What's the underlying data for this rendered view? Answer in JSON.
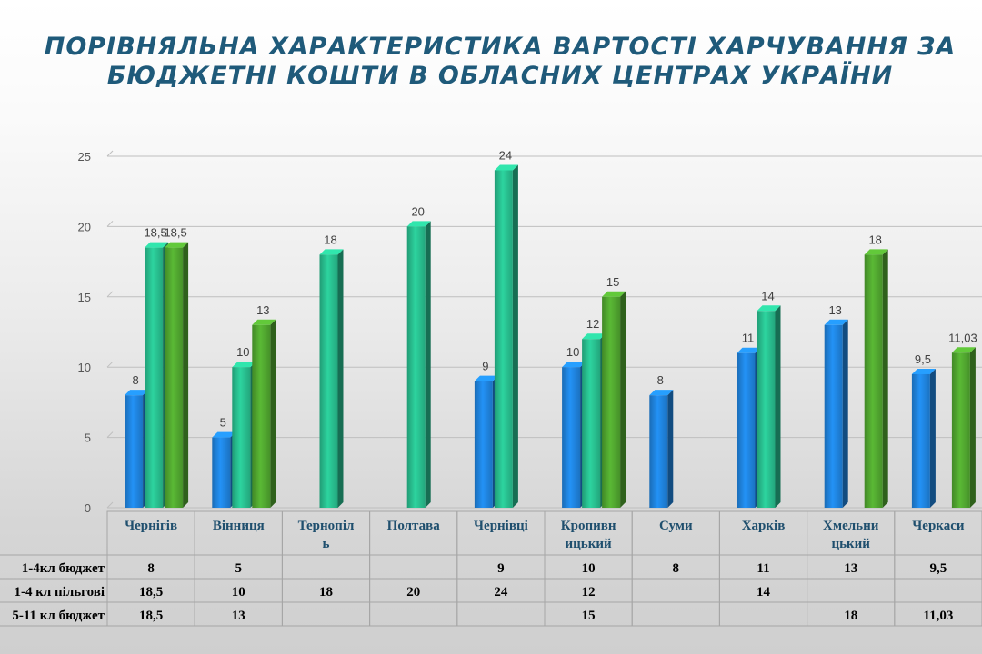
{
  "title_line1": "ПОРІВНЯЛЬНА ХАРАКТЕРИСТИКА ВАРТОСТІ ХАРЧУВАННЯ ЗА",
  "title_line2": "БЮДЖЕТНІ КОШТИ В ОБЛАСНИХ ЦЕНТРАХ УКРАЇНИ",
  "colors": {
    "series1": "#1e7fd6",
    "series2": "#27b88a",
    "series3": "#4ea12e",
    "grid": "#bfbfbf",
    "table_border": "#a6a6a6"
  },
  "chart_data": {
    "type": "bar",
    "title": "ПОРІВНЯЛЬНА ХАРАКТЕРИСТИКА ВАРТОСТІ ХАРЧУВАННЯ ЗА БЮДЖЕТНІ КОШТИ В ОБЛАСНИХ ЦЕНТРАХ УКРАЇНИ",
    "category_lines": [
      [
        "Чернігів"
      ],
      [
        "Вінниця"
      ],
      [
        "Тернопіл",
        "ь"
      ],
      [
        "Полтава"
      ],
      [
        "Чернівці"
      ],
      [
        "Кропивн",
        "ицький"
      ],
      [
        "Суми"
      ],
      [
        "Харків"
      ],
      [
        "Хмельни",
        "цький"
      ],
      [
        "Черкаси"
      ]
    ],
    "series": [
      {
        "name": "1-4кл бюджет",
        "values": [
          8,
          5,
          null,
          null,
          9,
          10,
          8,
          11,
          13,
          9.5
        ],
        "labels": [
          "8",
          "5",
          "",
          "",
          "9",
          "10",
          "8",
          "11",
          "13",
          "9,5"
        ]
      },
      {
        "name": "1-4 кл пільгові",
        "values": [
          18.5,
          10,
          18,
          20,
          24,
          12,
          null,
          14,
          null,
          null
        ],
        "labels": [
          "18,5",
          "10",
          "18",
          "20",
          "24",
          "12",
          "",
          "14",
          "",
          ""
        ]
      },
      {
        "name": "5-11 кл бюджет",
        "values": [
          18.5,
          13,
          null,
          null,
          null,
          15,
          null,
          null,
          18,
          11.03
        ],
        "labels": [
          "18,5",
          "13",
          "",
          "",
          "",
          "15",
          "",
          "",
          "18",
          "11,03"
        ]
      }
    ],
    "ylim": [
      0,
      25
    ],
    "yticks": [
      0,
      5,
      10,
      15,
      20,
      25
    ],
    "grid": true,
    "legend": "table-below"
  }
}
